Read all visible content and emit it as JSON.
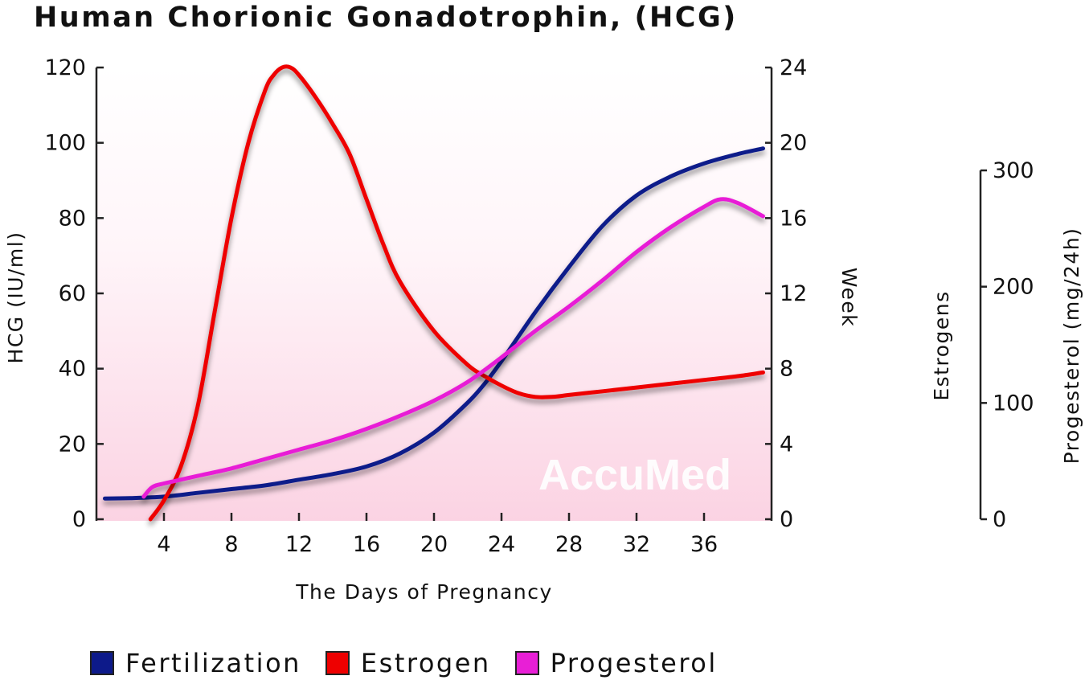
{
  "chart_data": {
    "type": "line",
    "title": "Human Chorionic Gonadotrophin, (HCG)",
    "xlabel": "The Days of Pregnancy",
    "ylabel": "HCG (IU/ml)",
    "xlim": [
      0,
      40
    ],
    "ylim": [
      0,
      120
    ],
    "x_ticks": [
      4,
      8,
      12,
      16,
      20,
      24,
      28,
      32,
      36
    ],
    "y_ticks": [
      0,
      20,
      40,
      60,
      80,
      100,
      120
    ],
    "y2_label": "Week",
    "y2_ticks": [
      0,
      4,
      8,
      12,
      16,
      20,
      24
    ],
    "y2_lim": [
      0,
      24
    ],
    "y3_label_left": "Estrogens",
    "y3_label_right": "Progesterol (mg/24h)",
    "y3_ticks": [
      0,
      100,
      200,
      300
    ],
    "y3_lim": [
      0,
      300
    ],
    "grid": false,
    "legend_position": "bottom",
    "watermark": "AccuMed",
    "series": [
      {
        "name": "Fertilization",
        "color": "#0d1a8a",
        "x": [
          0.5,
          2,
          4,
          6,
          8,
          10,
          12,
          14,
          16,
          18,
          20,
          22,
          23,
          24,
          26,
          28,
          30,
          32,
          34,
          36,
          38,
          39.5
        ],
        "y": [
          5.5,
          5.6,
          6,
          7,
          8,
          9,
          10.5,
          12,
          14,
          17.5,
          23,
          31,
          36,
          42,
          55,
          67,
          78,
          86,
          91,
          94.5,
          97,
          98.5
        ]
      },
      {
        "name": "Estrogen",
        "color": "#ee0000",
        "x": [
          3.2,
          4,
          5,
          6,
          7,
          8,
          9,
          10,
          10.5,
          11,
          11.5,
          12,
          13,
          14,
          15,
          16,
          17,
          18,
          20,
          22,
          23,
          24,
          25,
          26,
          27,
          28,
          30,
          32,
          34,
          36,
          38,
          39.5
        ],
        "y": [
          0,
          5,
          14,
          30,
          55,
          80,
          100,
          114,
          118,
          120,
          120,
          118,
          112,
          105,
          97,
          85,
          73,
          63,
          50,
          41,
          38,
          35.5,
          33.5,
          32.5,
          32.5,
          33,
          34,
          35,
          36,
          37,
          38,
          39
        ]
      },
      {
        "name": "Progesterol",
        "color": "#e81fd6",
        "x": [
          2.8,
          3.3,
          4,
          6,
          8,
          10,
          12,
          14,
          16,
          18,
          20,
          22,
          24,
          26,
          28,
          30,
          32,
          34,
          36,
          37,
          38,
          39.5
        ],
        "y": [
          6,
          8.5,
          9.5,
          11.5,
          13.5,
          16,
          18.5,
          21,
          24,
          27.5,
          31.5,
          36.5,
          43,
          50,
          56.5,
          63.5,
          71,
          77.5,
          83,
          85,
          84,
          80.5
        ]
      }
    ]
  }
}
